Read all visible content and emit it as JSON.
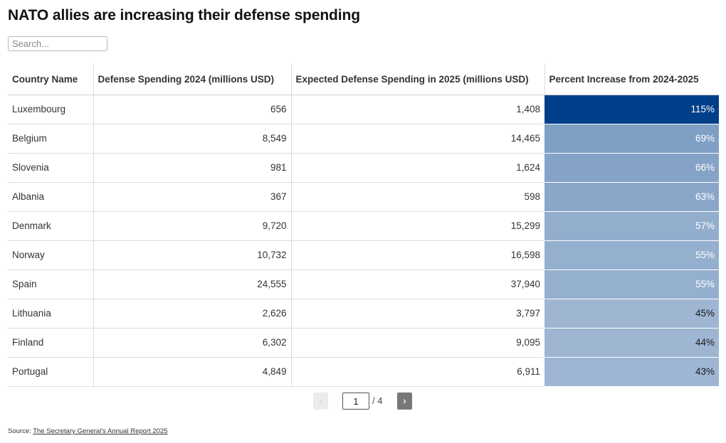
{
  "title": "NATO allies are increasing their defense spending",
  "search": {
    "placeholder": "Search..."
  },
  "chart_data": {
    "type": "table",
    "columns": [
      "Country Name",
      "Defense Spending 2024 (millions USD)",
      "Expected Defense Spending in 2025 (millions USD)",
      "Percent Increase from 2024-2025"
    ],
    "rows": [
      {
        "country": "Luxembourg",
        "spend_2024": "656",
        "spend_2025": "1,408",
        "pct": "115%",
        "pct_value": 115
      },
      {
        "country": "Belgium",
        "spend_2024": "8,549",
        "spend_2025": "14,465",
        "pct": "69%",
        "pct_value": 69
      },
      {
        "country": "Slovenia",
        "spend_2024": "981",
        "spend_2025": "1,624",
        "pct": "66%",
        "pct_value": 66
      },
      {
        "country": "Albania",
        "spend_2024": "367",
        "spend_2025": "598",
        "pct": "63%",
        "pct_value": 63
      },
      {
        "country": "Denmark",
        "spend_2024": "9,720",
        "spend_2025": "15,299",
        "pct": "57%",
        "pct_value": 57
      },
      {
        "country": "Norway",
        "spend_2024": "10,732",
        "spend_2025": "16,598",
        "pct": "55%",
        "pct_value": 55
      },
      {
        "country": "Spain",
        "spend_2024": "24,555",
        "spend_2025": "37,940",
        "pct": "55%",
        "pct_value": 55
      },
      {
        "country": "Lithuania",
        "spend_2024": "2,626",
        "spend_2025": "3,797",
        "pct": "45%",
        "pct_value": 45
      },
      {
        "country": "Finland",
        "spend_2024": "6,302",
        "spend_2025": "9,095",
        "pct": "44%",
        "pct_value": 44
      },
      {
        "country": "Portugal",
        "spend_2024": "4,849",
        "spend_2025": "6,911",
        "pct": "43%",
        "pct_value": 43
      }
    ],
    "heat_color": "#003f8a"
  },
  "pagination": {
    "prev": "‹",
    "next": "›",
    "current": "1",
    "total": "/ 4"
  },
  "source": {
    "prefix": "Source: ",
    "link_text": "The Secretary General's Annual Report 2025"
  }
}
